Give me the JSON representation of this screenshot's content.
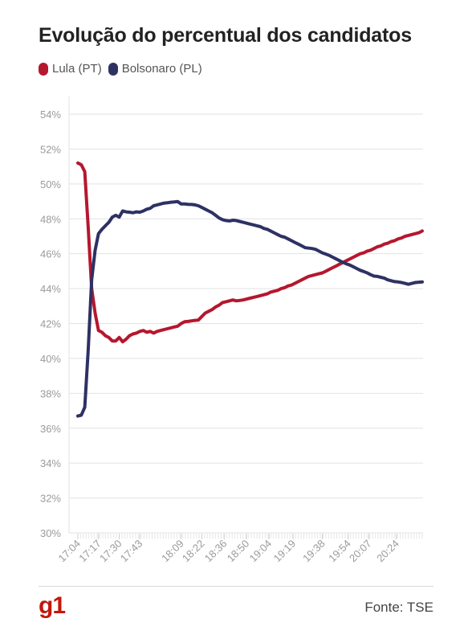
{
  "title": "Evolução do percentual dos candidatos",
  "logo": "g1",
  "source": "Fonte: TSE",
  "colors": {
    "lula": "#b5172e",
    "bolsonaro": "#2e3163",
    "grid": "#e2e2e2",
    "axis_text": "#9a9a9a"
  },
  "chart_data": {
    "type": "line",
    "ylim": [
      30,
      54
    ],
    "yticks": [
      "30%",
      "32%",
      "34%",
      "36%",
      "38%",
      "40%",
      "42%",
      "44%",
      "46%",
      "48%",
      "50%",
      "52%",
      "54%"
    ],
    "yvalues": [
      30,
      32,
      34,
      36,
      38,
      40,
      42,
      44,
      46,
      48,
      50,
      52,
      54
    ],
    "xlim": [
      0,
      100
    ],
    "xticks": [
      {
        "label": "17:04",
        "pos": 0
      },
      {
        "label": "17:17",
        "pos": 6
      },
      {
        "label": "17:30",
        "pos": 12
      },
      {
        "label": "17:43",
        "pos": 18
      },
      {
        "label": "18:09",
        "pos": 30
      },
      {
        "label": "18:22",
        "pos": 36
      },
      {
        "label": "18:36",
        "pos": 42.5
      },
      {
        "label": "18:50",
        "pos": 49
      },
      {
        "label": "19:04",
        "pos": 55.5
      },
      {
        "label": "19:19",
        "pos": 62.5
      },
      {
        "label": "19:38",
        "pos": 71
      },
      {
        "label": "19:54",
        "pos": 78.5
      },
      {
        "label": "20:07",
        "pos": 84.5
      },
      {
        "label": "20:24",
        "pos": 92.5
      }
    ],
    "series": [
      {
        "name": "Lula (PT)",
        "color": "#b5172e",
        "x": [
          0,
          1,
          2,
          3,
          4,
          5,
          6,
          7,
          8,
          9,
          10,
          11,
          12,
          13,
          14,
          15,
          16,
          17,
          18,
          19,
          20,
          21,
          22,
          23,
          24,
          25,
          26,
          27,
          28,
          29,
          30,
          31,
          32,
          33,
          34,
          35,
          36,
          37,
          38,
          39,
          40,
          41,
          42,
          43,
          44,
          45,
          46,
          47,
          48,
          49,
          50,
          51,
          52,
          53,
          54,
          55,
          56,
          57,
          58,
          59,
          60,
          61,
          62,
          63,
          64,
          65,
          66,
          67,
          68,
          69,
          70,
          71,
          72,
          73,
          74,
          75,
          76,
          77,
          78,
          79,
          80,
          81,
          82,
          83,
          84,
          85,
          86,
          87,
          88,
          89,
          90,
          91,
          92,
          93,
          94,
          95,
          96,
          97,
          98,
          99,
          100
        ],
        "values": [
          51.2,
          51.1,
          50.7,
          47.5,
          44,
          42.6,
          41.6,
          41.5,
          41.3,
          41.2,
          41,
          41,
          41.2,
          40.95,
          41.1,
          41.3,
          41.4,
          41.45,
          41.55,
          41.6,
          41.5,
          41.55,
          41.45,
          41.55,
          41.6,
          41.65,
          41.7,
          41.75,
          41.8,
          41.85,
          42,
          42.1,
          42.12,
          42.15,
          42.18,
          42.2,
          42.4,
          42.6,
          42.7,
          42.8,
          42.95,
          43.05,
          43.2,
          43.25,
          43.3,
          43.35,
          43.3,
          43.32,
          43.35,
          43.4,
          43.45,
          43.5,
          43.55,
          43.6,
          43.65,
          43.7,
          43.8,
          43.85,
          43.9,
          44,
          44.05,
          44.15,
          44.2,
          44.3,
          44.4,
          44.5,
          44.6,
          44.7,
          44.75,
          44.8,
          44.85,
          44.9,
          45,
          45.1,
          45.2,
          45.3,
          45.4,
          45.5,
          45.6,
          45.7,
          45.8,
          45.9,
          46,
          46.05,
          46.15,
          46.2,
          46.3,
          46.4,
          46.45,
          46.55,
          46.6,
          46.7,
          46.75,
          46.85,
          46.9,
          47,
          47.05,
          47.1,
          47.15,
          47.2,
          47.3
        ]
      },
      {
        "name": "Bolsonaro (PL)",
        "color": "#2e3163",
        "x": [
          0,
          1,
          2,
          3,
          4,
          5,
          6,
          7,
          8,
          9,
          10,
          11,
          12,
          13,
          14,
          15,
          16,
          17,
          18,
          19,
          20,
          21,
          22,
          23,
          24,
          25,
          26,
          27,
          28,
          29,
          30,
          31,
          32,
          33,
          34,
          35,
          36,
          37,
          38,
          39,
          40,
          41,
          42,
          43,
          44,
          45,
          46,
          47,
          48,
          49,
          50,
          51,
          52,
          53,
          54,
          55,
          56,
          57,
          58,
          59,
          60,
          61,
          62,
          63,
          64,
          65,
          66,
          67,
          68,
          69,
          70,
          71,
          72,
          73,
          74,
          75,
          76,
          77,
          78,
          79,
          80,
          81,
          82,
          83,
          84,
          85,
          86,
          87,
          88,
          89,
          90,
          91,
          92,
          93,
          94,
          95,
          96,
          97,
          98,
          99,
          100
        ],
        "values": [
          36.7,
          36.75,
          37.2,
          40.5,
          44.5,
          46.2,
          47.15,
          47.4,
          47.6,
          47.8,
          48.1,
          48.2,
          48.1,
          48.45,
          48.4,
          48.38,
          48.35,
          48.4,
          48.38,
          48.45,
          48.55,
          48.6,
          48.75,
          48.8,
          48.85,
          48.9,
          48.92,
          48.95,
          48.97,
          48.99,
          48.85,
          48.85,
          48.83,
          48.82,
          48.8,
          48.75,
          48.65,
          48.55,
          48.45,
          48.35,
          48.2,
          48.05,
          47.95,
          47.9,
          47.88,
          47.92,
          47.9,
          47.85,
          47.8,
          47.75,
          47.7,
          47.65,
          47.6,
          47.55,
          47.45,
          47.4,
          47.3,
          47.2,
          47.1,
          47,
          46.95,
          46.85,
          46.75,
          46.65,
          46.55,
          46.45,
          46.35,
          46.32,
          46.3,
          46.25,
          46.15,
          46.05,
          45.98,
          45.9,
          45.8,
          45.7,
          45.6,
          45.5,
          45.42,
          45.35,
          45.25,
          45.15,
          45.05,
          44.98,
          44.9,
          44.8,
          44.72,
          44.7,
          44.65,
          44.6,
          44.5,
          44.45,
          44.4,
          44.38,
          44.35,
          44.3,
          44.25,
          44.3,
          44.35,
          44.37,
          44.38
        ]
      }
    ]
  }
}
